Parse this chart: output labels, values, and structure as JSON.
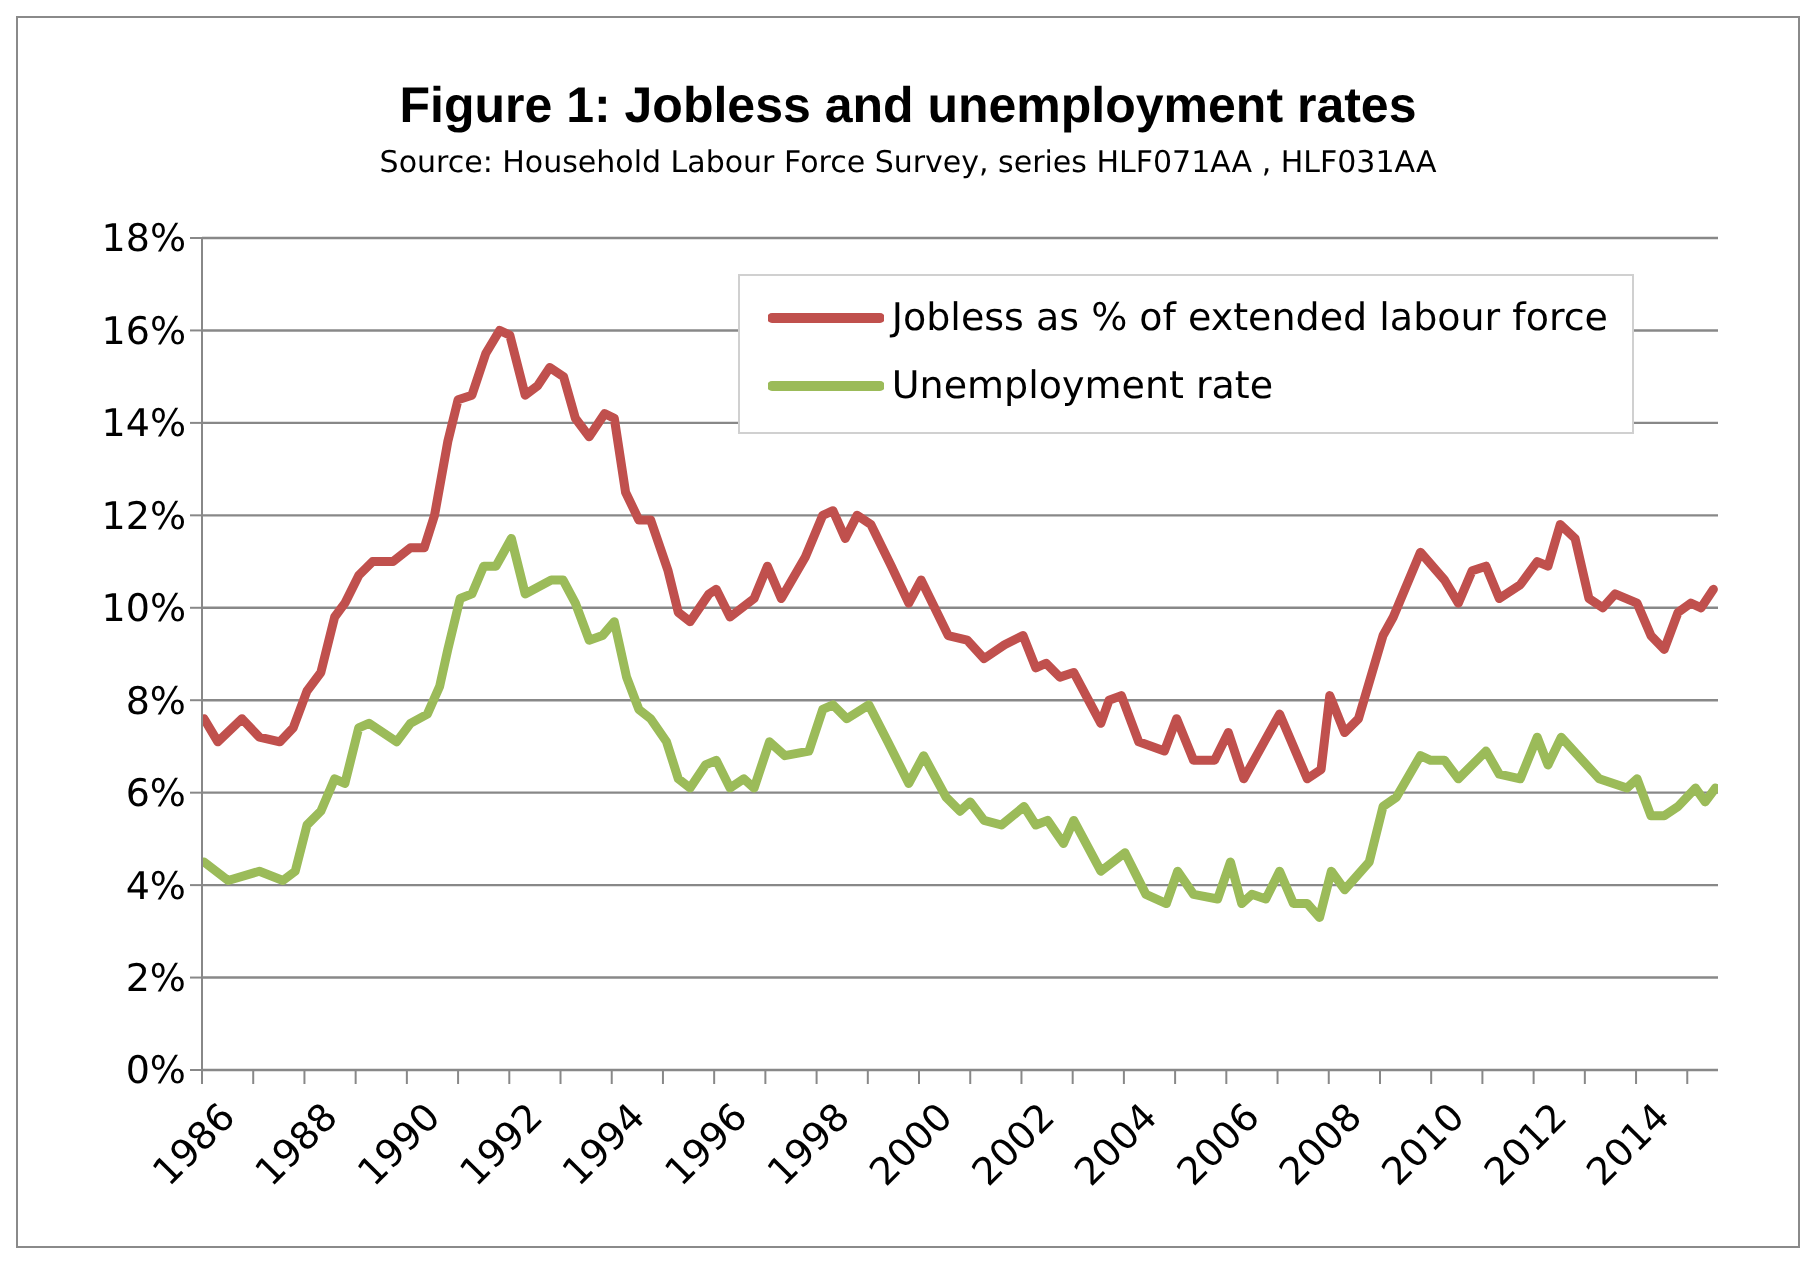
{
  "chart_data": {
    "type": "line",
    "title": "Figure 1: Jobless and unemployment rates",
    "subtitle": "Source: Household Labour Force Survey, series HLF071AA , HLF031AA",
    "xlim": [
      1986,
      2015.6
    ],
    "xticks": [
      1986,
      {
        "value": 1987,
        "label": null
      },
      1988,
      {
        "value": 1989,
        "label": null
      },
      1990,
      {
        "value": 1991,
        "label": null
      },
      1992,
      {
        "value": 1993,
        "label": null
      },
      1994,
      {
        "value": 1995,
        "label": null
      },
      1996,
      {
        "value": 1997,
        "label": null
      },
      1998,
      {
        "value": 1999,
        "label": null
      },
      2000,
      {
        "value": 2001,
        "label": null
      },
      2002,
      {
        "value": 2003,
        "label": null
      },
      2004,
      {
        "value": 2005,
        "label": null
      },
      2006,
      {
        "value": 2007,
        "label": null
      },
      2008,
      {
        "value": 2009,
        "label": null
      },
      2010,
      {
        "value": 2011,
        "label": null
      },
      2012,
      {
        "value": 2013,
        "label": null
      },
      2014,
      {
        "value": 2015,
        "label": null
      }
    ],
    "ylim": [
      0,
      18
    ],
    "yticks": [
      {
        "value": 0,
        "label": "0%"
      },
      {
        "value": 2,
        "label": "2%"
      },
      {
        "value": 4,
        "label": "4%"
      },
      {
        "value": 6,
        "label": "6%"
      },
      {
        "value": 8,
        "label": "8%"
      },
      {
        "value": 10,
        "label": "10%"
      },
      {
        "value": 12,
        "label": "12%"
      },
      {
        "value": 14,
        "label": "14%"
      },
      {
        "value": 16,
        "label": "16%"
      },
      {
        "value": 18,
        "label": "18%"
      }
    ],
    "grid": "y",
    "legend": "top right",
    "marker": "none",
    "line_style": "solid",
    "series": [
      {
        "name": "Jobless as % of extended labour force",
        "color": "#c0504d",
        "x": [
          1986.04,
          1986.31,
          1986.78,
          1987.12,
          1987.52,
          1987.78,
          1988.05,
          1988.32,
          1988.59,
          1988.79,
          1989.06,
          1989.33,
          1989.73,
          1990.07,
          1990.34,
          1990.54,
          1990.8,
          1991.0,
          1991.27,
          1991.54,
          1991.81,
          1992.01,
          1992.31,
          1992.55,
          1992.79,
          1993.06,
          1993.29,
          1993.56,
          1993.86,
          1994.05,
          1994.27,
          1994.53,
          1994.76,
          1995.1,
          1995.3,
          1995.53,
          1995.9,
          1996.04,
          1996.31,
          1996.78,
          1997.04,
          1997.31,
          1997.78,
          1998.12,
          1998.32,
          1998.56,
          1998.79,
          1999.06,
          1999.46,
          1999.8,
          2000.04,
          2000.57,
          2000.94,
          2001.27,
          2001.67,
          2002.03,
          2002.28,
          2002.48,
          2002.75,
          2003.02,
          2003.55,
          2003.71,
          2003.95,
          2004.29,
          2004.79,
          2005.03,
          2005.36,
          2005.77,
          2006.04,
          2006.34,
          2007.04,
          2007.58,
          2007.85,
          2008.02,
          2008.31,
          2008.58,
          2009.06,
          2009.26,
          2009.79,
          2010.26,
          2010.53,
          2010.8,
          2011.07,
          2011.33,
          2011.74,
          2012.07,
          2012.28,
          2012.52,
          2012.81,
          2013.08,
          2013.35,
          2013.59,
          2014.02,
          2014.29,
          2014.55,
          2014.82,
          2015.07,
          2015.27,
          2015.51
        ],
        "values": [
          7.6,
          7.1,
          7.6,
          7.2,
          7.1,
          7.4,
          8.2,
          8.6,
          9.8,
          10.1,
          10.7,
          11.0,
          11.0,
          11.3,
          11.3,
          12.0,
          13.6,
          14.5,
          14.6,
          15.5,
          16.0,
          15.9,
          14.6,
          14.8,
          15.2,
          15.0,
          14.1,
          13.7,
          14.2,
          14.1,
          12.5,
          11.9,
          11.9,
          10.8,
          9.9,
          9.7,
          10.3,
          10.4,
          9.8,
          10.2,
          10.9,
          10.2,
          11.1,
          12.0,
          12.1,
          11.5,
          12.0,
          11.8,
          10.9,
          10.1,
          10.6,
          9.4,
          9.3,
          8.9,
          9.2,
          9.4,
          8.7,
          8.8,
          8.5,
          8.6,
          7.5,
          8.0,
          8.1,
          7.1,
          6.9,
          7.6,
          6.7,
          6.7,
          7.3,
          6.3,
          7.7,
          6.3,
          6.5,
          8.1,
          7.3,
          7.6,
          9.4,
          9.8,
          11.2,
          10.6,
          10.1,
          10.8,
          10.9,
          10.2,
          10.5,
          11.0,
          10.9,
          11.8,
          11.5,
          10.2,
          10.0,
          10.3,
          10.1,
          9.4,
          9.1,
          9.9,
          10.1,
          10.0,
          10.4
        ]
      },
      {
        "name": "Unemployment rate",
        "color": "#9bbb59",
        "x": [
          1986.04,
          1986.51,
          1987.12,
          1987.58,
          1987.82,
          1988.05,
          1988.32,
          1988.59,
          1988.79,
          1989.06,
          1989.26,
          1989.8,
          1990.07,
          1990.4,
          1990.64,
          1990.8,
          1991.04,
          1991.27,
          1991.5,
          1991.74,
          1992.04,
          1992.31,
          1992.82,
          1993.05,
          1993.29,
          1993.56,
          1993.82,
          1994.05,
          1994.29,
          1994.53,
          1994.76,
          1995.07,
          1995.3,
          1995.53,
          1995.83,
          1996.04,
          1996.31,
          1996.58,
          1996.78,
          1997.08,
          1997.38,
          1997.85,
          1998.12,
          1998.32,
          1998.59,
          1999.02,
          1999.39,
          1999.8,
          2000.09,
          2000.53,
          2000.8,
          2001.0,
          2001.27,
          2001.61,
          2002.05,
          2002.28,
          2002.51,
          2002.82,
          2003.02,
          2003.55,
          2004.02,
          2004.43,
          2004.83,
          2005.05,
          2005.36,
          2005.83,
          2006.08,
          2006.3,
          2006.5,
          2006.77,
          2007.04,
          2007.31,
          2007.58,
          2007.82,
          2008.05,
          2008.31,
          2008.79,
          2009.06,
          2009.32,
          2009.79,
          2009.99,
          2010.26,
          2010.53,
          2011.07,
          2011.33,
          2011.74,
          2012.07,
          2012.28,
          2012.54,
          2013.28,
          2013.82,
          2014.02,
          2014.29,
          2014.55,
          2014.82,
          2015.16,
          2015.35,
          2015.55
        ],
        "values": [
          4.5,
          4.1,
          4.3,
          4.1,
          4.3,
          5.3,
          5.6,
          6.3,
          6.2,
          7.4,
          7.5,
          7.1,
          7.5,
          7.7,
          8.3,
          9.1,
          10.2,
          10.3,
          10.9,
          10.9,
          11.5,
          10.3,
          10.6,
          10.6,
          10.1,
          9.3,
          9.4,
          9.7,
          8.5,
          7.8,
          7.6,
          7.1,
          6.3,
          6.1,
          6.6,
          6.7,
          6.1,
          6.3,
          6.1,
          7.1,
          6.8,
          6.9,
          7.8,
          7.9,
          7.6,
          7.9,
          7.1,
          6.2,
          6.8,
          5.9,
          5.6,
          5.8,
          5.4,
          5.3,
          5.7,
          5.3,
          5.4,
          4.9,
          5.4,
          4.3,
          4.7,
          3.8,
          3.6,
          4.3,
          3.8,
          3.7,
          4.5,
          3.6,
          3.8,
          3.7,
          4.3,
          3.6,
          3.6,
          3.3,
          4.3,
          3.9,
          4.5,
          5.7,
          5.9,
          6.8,
          6.7,
          6.7,
          6.3,
          6.9,
          6.4,
          6.3,
          7.2,
          6.6,
          7.2,
          6.3,
          6.1,
          6.3,
          5.5,
          5.5,
          5.7,
          6.1,
          5.8,
          6.1
        ]
      }
    ]
  }
}
